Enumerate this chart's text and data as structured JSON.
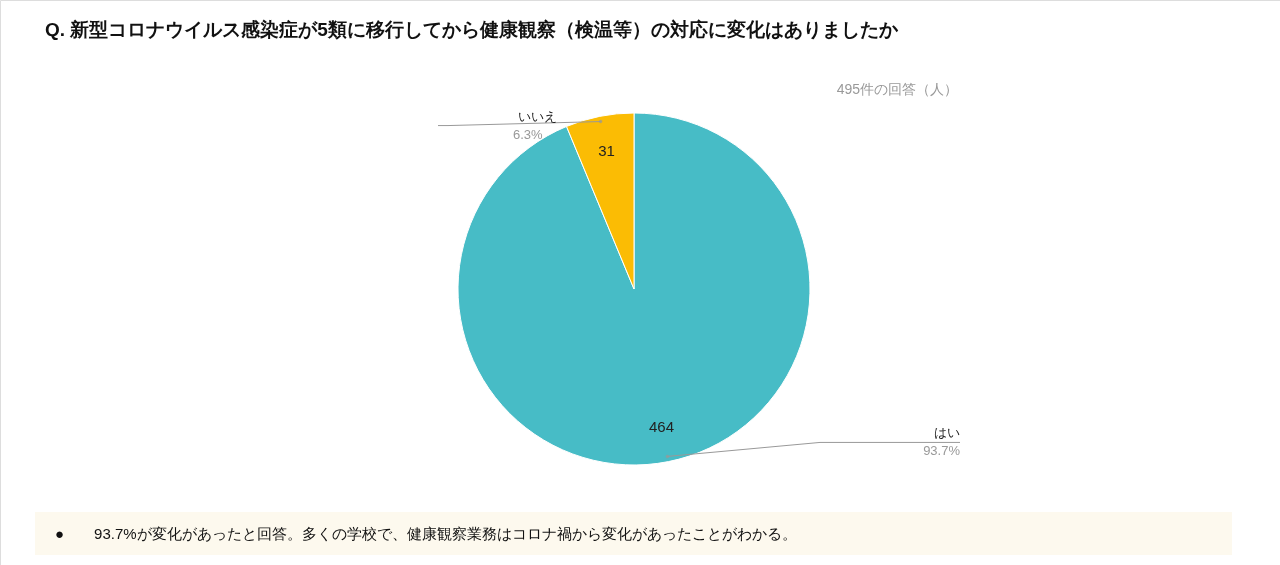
{
  "chart_data": {
    "type": "pie",
    "title": "Q. 新型コロナウイルス感染症が5類に移行してから健康観察（検温等）の対応に変化はありましたか",
    "subtitle": "495件の回答（人）",
    "categories": [
      "はい",
      "いいえ"
    ],
    "values": [
      464,
      31
    ],
    "colors": [
      "#47bcc6",
      "#fbbc04"
    ],
    "value_labels": [
      "464",
      "31"
    ],
    "annotations": [
      {
        "text": "93.7%",
        "x": "はい"
      },
      {
        "text": "6.3%",
        "x": "いいえ"
      },
      "●　　93.7%が変化があったと回答。多くの学校で、健康観察業務はコロナ禍から変化があったことがわかる。"
    ]
  }
}
